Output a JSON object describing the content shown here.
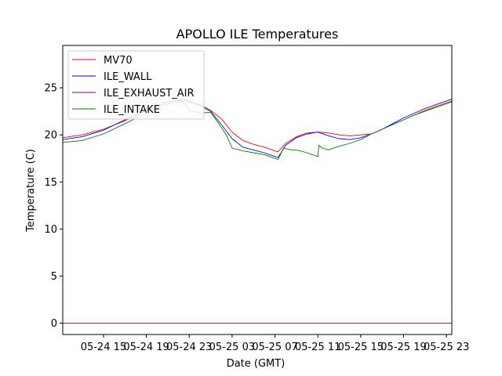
{
  "chart_data": {
    "type": "line",
    "title": "APOLLO ILE Temperatures",
    "xlabel": "Date (GMT)",
    "ylabel": "Temperature (C)",
    "xlim": [
      11.2,
      47.5
    ],
    "ylim": [
      -1.2,
      29.5
    ],
    "x_unit": "hours since 05-24 00:00 GMT",
    "xticks": [
      {
        "x": 15,
        "label": "05-24 15"
      },
      {
        "x": 19,
        "label": "05-24 19"
      },
      {
        "x": 23,
        "label": "05-24 23"
      },
      {
        "x": 27,
        "label": "05-25 03"
      },
      {
        "x": 31,
        "label": "05-25 07"
      },
      {
        "x": 35,
        "label": "05-25 11"
      },
      {
        "x": 39,
        "label": "05-25 15"
      },
      {
        "x": 43,
        "label": "05-25 19"
      },
      {
        "x": 47,
        "label": "05-25 23"
      }
    ],
    "yticks": [
      0,
      5,
      10,
      15,
      20,
      25
    ],
    "grid": false,
    "legend_position": "top-left",
    "series": [
      {
        "name": "MV70",
        "color": "#ff0000",
        "x": [
          11.2,
          13,
          15,
          17,
          19,
          21,
          22.5,
          24,
          25,
          26,
          27,
          28,
          29,
          30,
          31,
          31.3,
          32,
          33,
          34,
          35,
          36,
          37,
          38,
          39,
          40,
          41,
          42,
          43,
          44,
          45,
          46,
          47,
          47.5
        ],
        "y": [
          19.7,
          20,
          20.6,
          21.5,
          22.6,
          23.5,
          23.8,
          23.2,
          22.6,
          21.7,
          20.3,
          19.4,
          19,
          18.7,
          18.3,
          18.2,
          19.1,
          19.8,
          20.2,
          20.3,
          20.2,
          20,
          19.9,
          20,
          20.1,
          20.6,
          21.1,
          21.6,
          22.1,
          22.6,
          23,
          23.4,
          23.6
        ]
      },
      {
        "name": "ILE_WALL",
        "color": "#0000ff",
        "x": [
          11.2,
          13,
          15,
          17,
          19,
          21,
          22.5,
          24,
          25,
          26,
          27,
          28,
          29,
          30,
          31,
          31.3,
          32,
          33,
          34,
          35,
          36,
          37,
          38,
          39,
          40,
          41,
          42,
          43,
          44,
          45,
          46,
          47,
          47.5
        ],
        "y": [
          19.5,
          19.8,
          20.5,
          21.6,
          22.6,
          23.5,
          23.7,
          23.1,
          22.5,
          21.1,
          19.6,
          18.7,
          18.4,
          18.1,
          17.7,
          17.6,
          18.9,
          19.7,
          20.1,
          20.3,
          19.9,
          19.6,
          19.5,
          19.7,
          20.1,
          20.6,
          21.2,
          21.8,
          22.3,
          22.8,
          23.2,
          23.6,
          23.8
        ]
      },
      {
        "name": "ILE_EXHAUST_AIR",
        "color": "#800080",
        "x": [
          11.2,
          47.5
        ],
        "y": [
          0,
          0
        ]
      },
      {
        "name": "ILE_INTAKE",
        "color": "#008000",
        "x": [
          11.2,
          13,
          15,
          17,
          19,
          21,
          22.5,
          23,
          24,
          25,
          25.5,
          26,
          26.5,
          27,
          28,
          29,
          30,
          31,
          31.3,
          31.8,
          32.5,
          33,
          34,
          35,
          35.1,
          35.4,
          36,
          37,
          38,
          39,
          40,
          41,
          42,
          43,
          44,
          45,
          46,
          47,
          47.5
        ],
        "y": [
          19.2,
          19.4,
          20.1,
          21.2,
          22.3,
          23.3,
          23.6,
          22.6,
          22.3,
          22.4,
          21.6,
          20.8,
          19.9,
          18.6,
          18.3,
          18.1,
          17.9,
          17.5,
          17.4,
          18.6,
          18.4,
          18.4,
          18.1,
          17.7,
          18.9,
          18.6,
          18.4,
          18.8,
          19.1,
          19.5,
          20.1,
          20.6,
          21.1,
          21.6,
          22.1,
          22.5,
          22.9,
          23.3,
          23.5
        ]
      }
    ]
  }
}
